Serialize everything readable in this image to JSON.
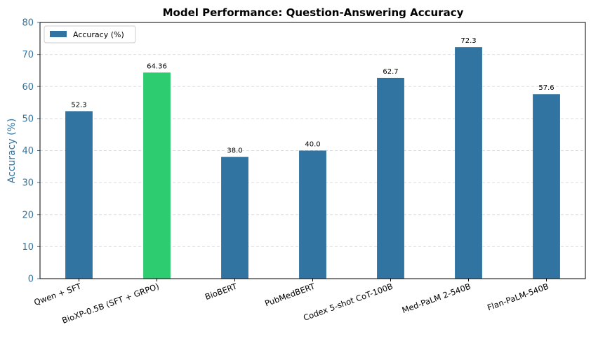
{
  "chart_data": {
    "type": "bar",
    "title": "Model Performance: Question-Answering Accuracy",
    "xlabel": "",
    "ylabel": "Accuracy (%)",
    "ylim": [
      0,
      80
    ],
    "yticks": [
      0,
      10,
      20,
      30,
      40,
      50,
      60,
      70,
      80
    ],
    "grid": "y-dashed",
    "legend_position": "top-left",
    "categories": [
      "Qwen + SFT",
      "BioXP-0.5B (SFT + GRPO)",
      "BioBERT",
      "PubMedBERT",
      "Codex 5-shot CoT-100B",
      "Med-PaLM 2-540B",
      "Flan-PaLM-540B"
    ],
    "series": [
      {
        "name": "Accuracy (%)",
        "values": [
          52.3,
          64.36,
          38.0,
          40.0,
          62.7,
          72.3,
          57.6
        ],
        "data_labels": [
          "52.3",
          "64.36",
          "38.0",
          "40.0",
          "62.7",
          "72.3",
          "57.6"
        ]
      }
    ],
    "highlight_index": 1,
    "colors": {
      "bar": "#3274a1",
      "highlight": "#2ecc71",
      "axis_label": "#3274a1",
      "grid": "#dddddd"
    }
  }
}
